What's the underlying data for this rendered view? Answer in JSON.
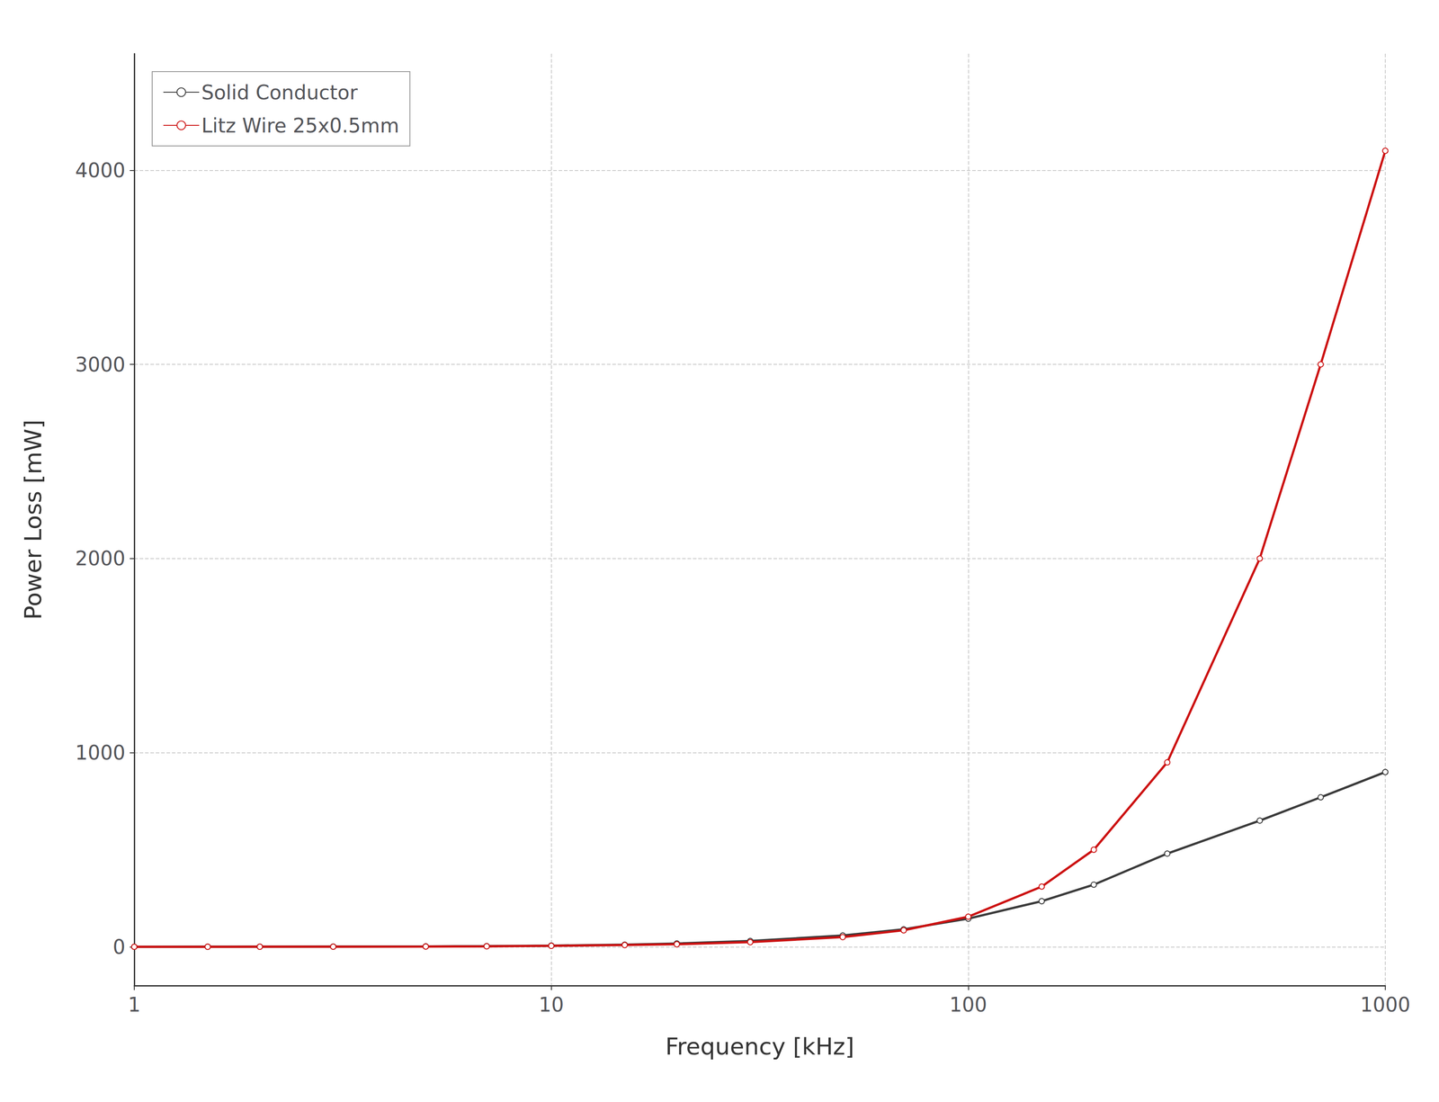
{
  "chart_data": {
    "type": "line",
    "xlabel": "Frequency [kHz]",
    "ylabel": "Power Loss [mW]",
    "x": [
      1,
      1.5,
      2,
      3,
      5,
      7,
      10,
      15,
      20,
      30,
      50,
      70,
      100,
      150,
      200,
      300,
      500,
      700,
      1000
    ],
    "series": [
      {
        "name": "Solid Conductor",
        "color": "#3a3a3a",
        "values": [
          0.1,
          0.3,
          0.5,
          1.0,
          2.0,
          3.5,
          6,
          11,
          17,
          30,
          58,
          90,
          145,
          235,
          320,
          480,
          650,
          770,
          900
        ]
      },
      {
        "name": "Litz Wire 25x0.5mm",
        "color": "#cc1111",
        "values": [
          0.05,
          0.15,
          0.3,
          0.6,
          1.3,
          2.5,
          5,
          9,
          13,
          24,
          50,
          85,
          155,
          310,
          500,
          950,
          2000,
          3000,
          4100
        ]
      }
    ],
    "xlim": [
      1,
      1000
    ],
    "ylim": [
      -200,
      4600
    ],
    "xticks": [
      1,
      10,
      100,
      1000
    ],
    "yticks": [
      0,
      1000,
      2000,
      3000,
      4000
    ],
    "log": "x",
    "grid": true,
    "legend": "upper left"
  }
}
